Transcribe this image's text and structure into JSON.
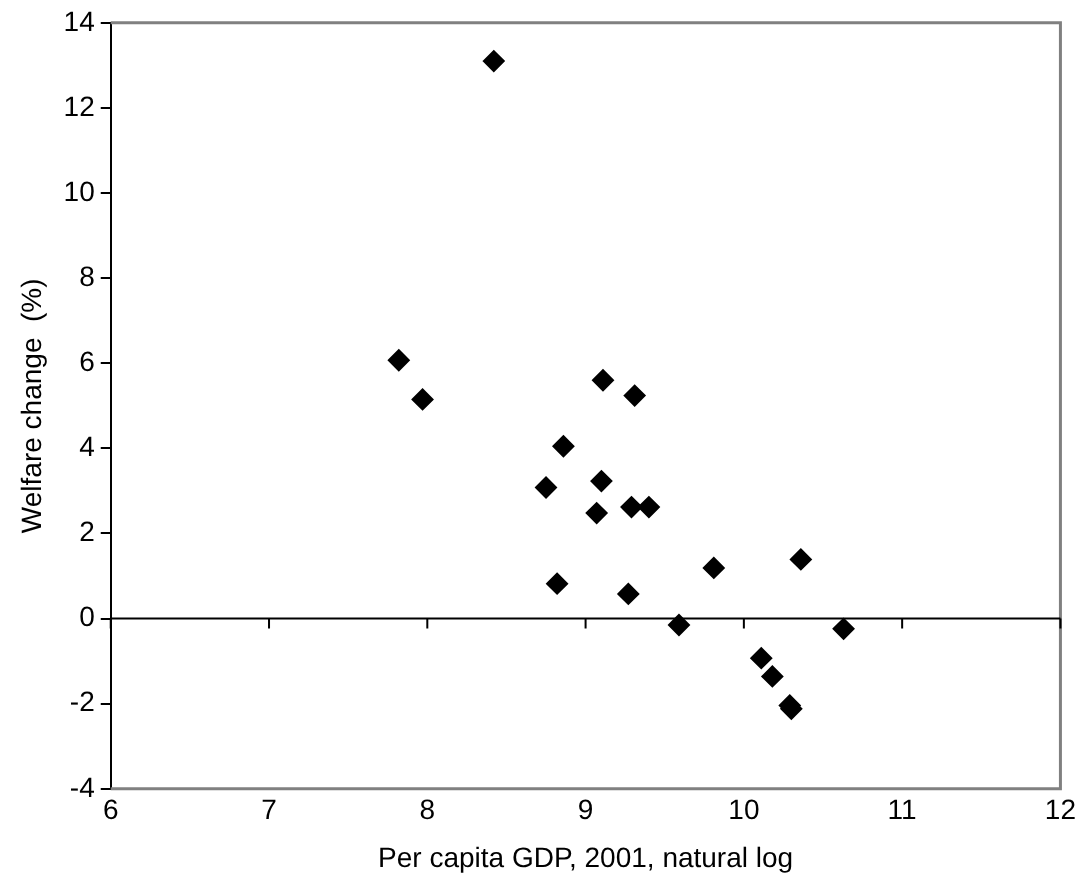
{
  "chart_data": {
    "type": "scatter",
    "xlabel": "Per capita GDP, 2001, natural log",
    "ylabel": "Welfare change  (%)",
    "x": [
      7.82,
      7.97,
      8.42,
      9.11,
      9.31,
      8.86,
      8.75,
      9.1,
      9.07,
      9.29,
      9.4,
      8.82,
      9.27,
      9.59,
      9.81,
      10.36,
      10.11,
      10.18,
      10.29,
      10.3,
      10.63
    ],
    "series": [
      {
        "color": "#000000",
        "values": [
          6.07,
          5.15,
          13.1,
          5.6,
          5.24,
          4.05,
          3.08,
          3.23,
          2.48,
          2.62,
          2.62,
          0.82,
          0.58,
          -0.15,
          1.19,
          1.39,
          -0.93,
          -1.36,
          -2.04,
          -2.12,
          -0.24
        ]
      }
    ],
    "xlim": [
      6,
      12
    ],
    "xticks": [
      6,
      7,
      8,
      9,
      10,
      11,
      12
    ],
    "ylim": [
      -4,
      14
    ],
    "yticks": [
      -4,
      -2,
      0,
      2,
      4,
      6,
      8,
      10,
      12,
      14
    ],
    "ref_lines": [
      {
        "axis": "y",
        "value": 0,
        "color": "#000000"
      }
    ],
    "marker": "diamond",
    "grid": false,
    "legend": false
  }
}
